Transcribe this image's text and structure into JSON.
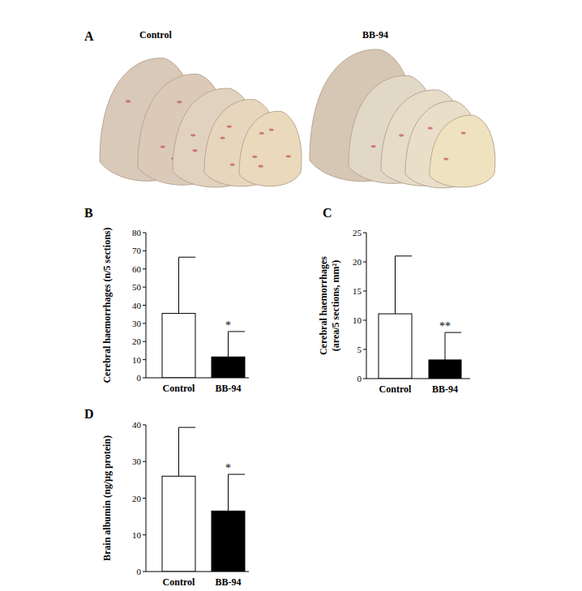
{
  "panel_a": {
    "panel_label": "A",
    "groups": [
      "Control",
      "BB-94"
    ]
  },
  "chart_data": [
    {
      "type": "bar",
      "panel_label": "B",
      "categories": [
        "Control",
        "BB-94"
      ],
      "values": [
        35.5,
        11.5
      ],
      "errors": [
        31,
        14
      ],
      "colors": [
        "#ffffff",
        "#000000"
      ],
      "y_label": "Cerebral haemorrhages (n/5 sections)",
      "ylim": [
        0,
        80
      ],
      "yticks": [
        0,
        10,
        20,
        30,
        40,
        50,
        60,
        70,
        80
      ],
      "grid": false,
      "significance": [
        null,
        "*"
      ]
    },
    {
      "type": "bar",
      "panel_label": "C",
      "categories": [
        "Control",
        "BB-94"
      ],
      "values": [
        11.1,
        3.2
      ],
      "errors": [
        9.9,
        4.7
      ],
      "colors": [
        "#ffffff",
        "#000000"
      ],
      "y_label": [
        "Cerebral haemorrhages",
        "(area/5 sections, mm²)"
      ],
      "ylim": [
        0,
        25
      ],
      "yticks": [
        0,
        5,
        10,
        15,
        20,
        25
      ],
      "grid": false,
      "significance": [
        null,
        "**"
      ]
    },
    {
      "type": "bar",
      "panel_label": "D",
      "categories": [
        "Control",
        "BB-94"
      ],
      "values": [
        26,
        16.5
      ],
      "errors": [
        13.3,
        10
      ],
      "colors": [
        "#ffffff",
        "#000000"
      ],
      "y_label": "Brain albumin (ng/µg protein)",
      "ylim": [
        0,
        40
      ],
      "yticks": [
        0,
        10,
        20,
        30,
        40
      ],
      "grid": false,
      "significance": [
        null,
        "*"
      ]
    }
  ]
}
